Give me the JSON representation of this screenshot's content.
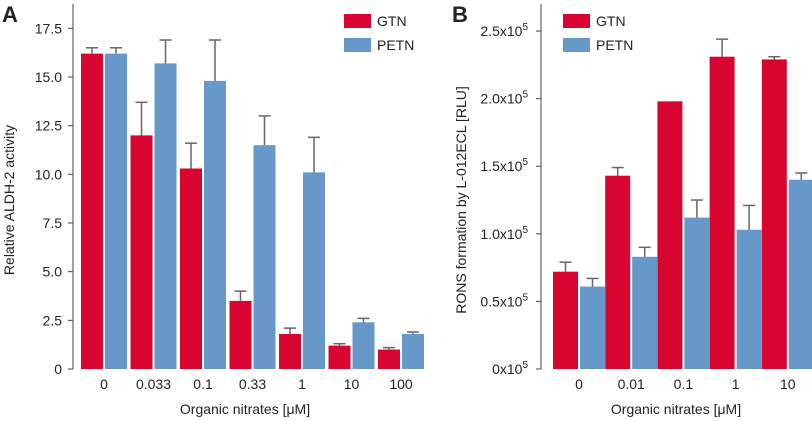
{
  "colors": {
    "GTN": "#d7052f",
    "PETN": "#6699c9",
    "error": "#666666"
  },
  "chart_data": [
    {
      "panel": "A",
      "type": "bar",
      "xlabel": "Organic nitrates [μM]",
      "ylabel": "Relative ALDH-2 activity",
      "ylim": [
        0,
        18.75
      ],
      "yticks": [
        "0",
        "2.5",
        "5.0",
        "7.5",
        "10.0",
        "12.5",
        "15.0",
        "17.5"
      ],
      "ytick_values": [
        0,
        2.5,
        5.0,
        7.5,
        10.0,
        12.5,
        15.0,
        17.5
      ],
      "categories": [
        "0",
        "0.033",
        "0.1",
        "0.33",
        "1",
        "10",
        "100"
      ],
      "legend": [
        "GTN",
        "PETN"
      ],
      "legend_position": "top-right",
      "series": [
        {
          "name": "GTN",
          "values": [
            16.2,
            12.0,
            10.3,
            3.5,
            1.8,
            1.2,
            1.0
          ],
          "errors": [
            0.3,
            1.7,
            1.3,
            0.5,
            0.3,
            0.1,
            0.1
          ]
        },
        {
          "name": "PETN",
          "values": [
            16.2,
            15.7,
            14.8,
            11.5,
            10.1,
            2.4,
            1.8
          ],
          "errors": [
            0.3,
            1.2,
            2.1,
            1.5,
            1.8,
            0.2,
            0.1
          ]
        }
      ]
    },
    {
      "panel": "B",
      "type": "bar",
      "xlabel": "Organic nitrates [μM]",
      "ylabel": "RONS formation by L-012ECL [RLU]",
      "ylim": [
        0,
        270000
      ],
      "yticks": [
        {
          "base": "0x10",
          "exp": "5"
        },
        {
          "base": "0.5x10",
          "exp": "5"
        },
        {
          "base": "1.0x10",
          "exp": "5"
        },
        {
          "base": "1.5x10",
          "exp": "5"
        },
        {
          "base": "2.0x10",
          "exp": "5"
        },
        {
          "base": "2.5x10",
          "exp": "5"
        }
      ],
      "ytick_values": [
        0,
        50000,
        100000,
        150000,
        200000,
        250000
      ],
      "categories": [
        "0",
        "0.01",
        "0.1",
        "1",
        "10"
      ],
      "legend": [
        "GTN",
        "PETN"
      ],
      "legend_position": "top-left",
      "series": [
        {
          "name": "GTN",
          "values": [
            72000,
            143000,
            198000,
            231000,
            229000
          ],
          "errors": [
            7000,
            6000,
            0,
            13000,
            2000
          ]
        },
        {
          "name": "PETN",
          "values": [
            61000,
            83000,
            112000,
            103000,
            140000
          ],
          "errors": [
            6000,
            7000,
            13000,
            18000,
            5000
          ]
        }
      ]
    }
  ]
}
